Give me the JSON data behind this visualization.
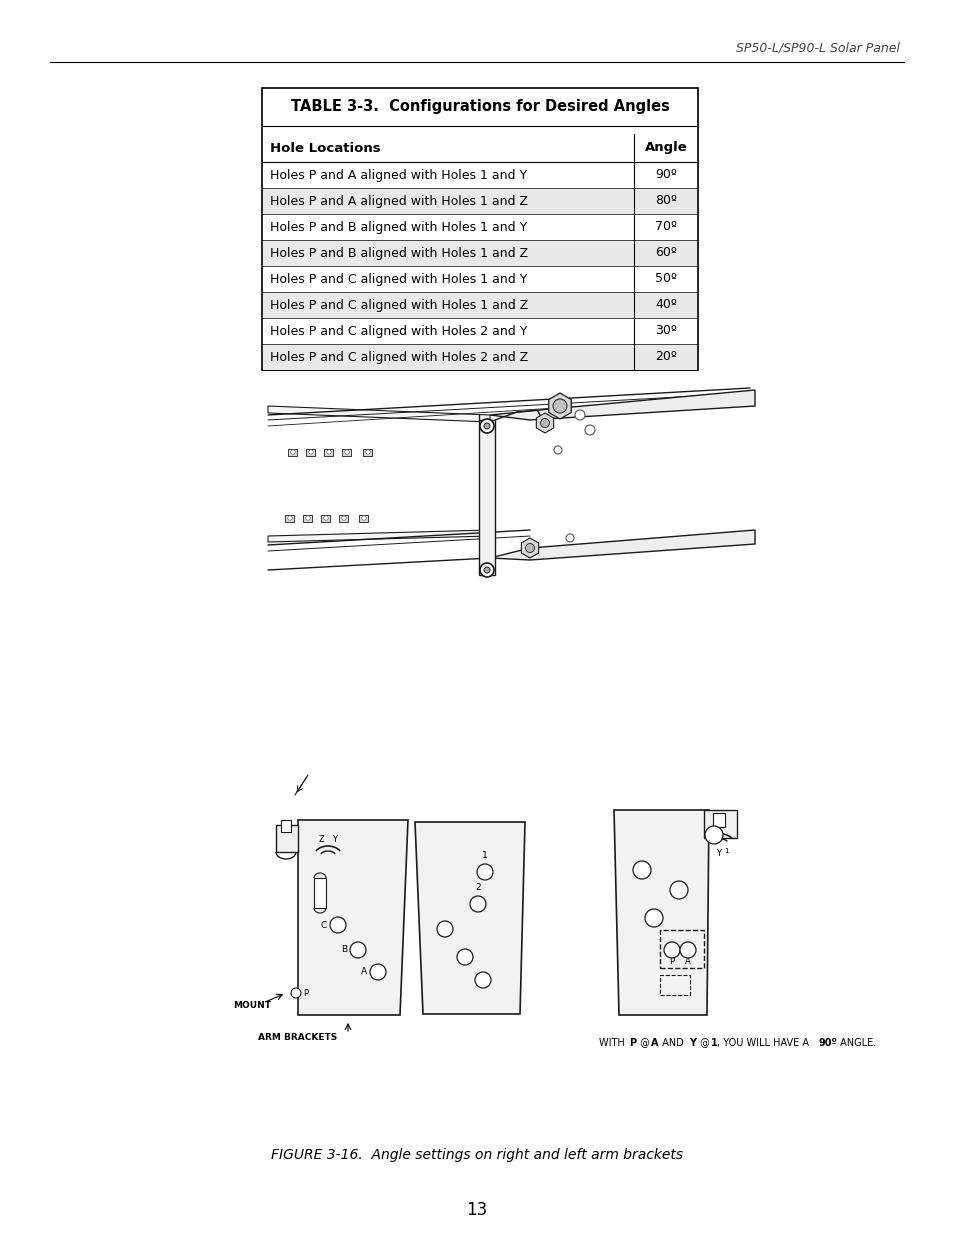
{
  "header_text": "SP50-L/SP90-L Solar Panel",
  "table_title": "TABLE 3-3.  Configurations for Desired Angles",
  "table_headers": [
    "Hole Locations",
    "Angle"
  ],
  "table_rows": [
    [
      "Holes P and A aligned with Holes 1 and Y",
      "90º"
    ],
    [
      "Holes P and A aligned with Holes 1 and Z",
      "80º"
    ],
    [
      "Holes P and B aligned with Holes 1 and Y",
      "70º"
    ],
    [
      "Holes P and B aligned with Holes 1 and Z",
      "60º"
    ],
    [
      "Holes P and C aligned with Holes 1 and Y",
      "50º"
    ],
    [
      "Holes P and C aligned with Holes 1 and Z",
      "40º"
    ],
    [
      "Holes P and C aligned with Holes 2 and Y",
      "30º"
    ],
    [
      "Holes P and C aligned with Holes 2 and Z",
      "20º"
    ]
  ],
  "figure_caption": "FIGURE 3-16.  Angle settings on right and left arm brackets",
  "page_number": "13",
  "bg_color": "#ffffff",
  "text_color": "#000000",
  "table_alt_bg": "#e8e8e8",
  "header_italic_color": "#555555"
}
